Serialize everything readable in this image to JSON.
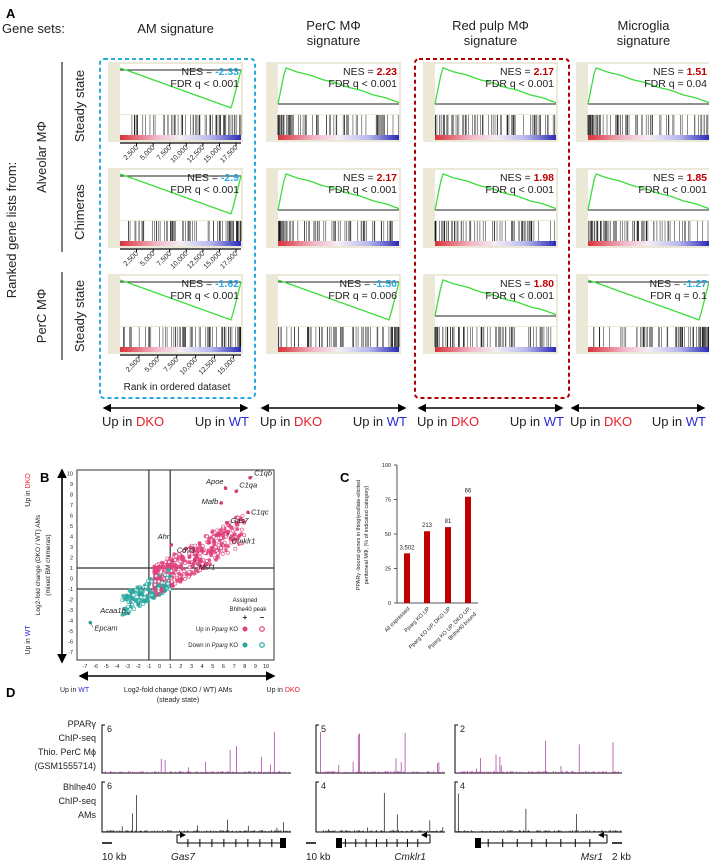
{
  "panel_labels": {
    "a": "A",
    "b": "B",
    "c": "C",
    "d": "D"
  },
  "panel_a": {
    "gene_sets_label": "Gene sets:",
    "columns": [
      {
        "title": [
          "AM signature",
          ""
        ]
      },
      {
        "title": [
          "PerC MΦ",
          "signature"
        ]
      },
      {
        "title": [
          "Red pulp MΦ",
          "signature"
        ]
      },
      {
        "title": [
          "Microglia",
          "signature"
        ]
      }
    ],
    "ranked_label": "Ranked gene lists from:",
    "groups": [
      {
        "label": "Alveolar MΦ"
      },
      {
        "label": "PerC MΦ"
      }
    ],
    "rows": [
      {
        "label": "Steady state"
      },
      {
        "label": "Chimeras"
      },
      {
        "label": "Steady state"
      }
    ],
    "results": [
      [
        {
          "nes": "-2.33",
          "fdr": "FDR q < 0.001"
        },
        {
          "nes": "2.23",
          "fdr": "FDR q < 0.001"
        },
        {
          "nes": "2.17",
          "fdr": "FDR q < 0.001"
        },
        {
          "nes": "1.51",
          "fdr": "FDR q = 0.04"
        }
      ],
      [
        {
          "nes": "-2.9",
          "fdr": "FDR q < 0.001"
        },
        {
          "nes": "2.17",
          "fdr": "FDR q < 0.001"
        },
        {
          "nes": "1.98",
          "fdr": "FDR q < 0.001"
        },
        {
          "nes": "1.85",
          "fdr": "FDR q < 0.001"
        }
      ],
      [
        {
          "nes": "-1.62",
          "fdr": "FDR q < 0.001"
        },
        {
          "nes": "-1.50",
          "fdr": "FDR q = 0.006"
        },
        {
          "nes": "1.80",
          "fdr": "FDR q < 0.001"
        },
        {
          "nes": "-1.27",
          "fdr": "FDR q = 0.1"
        }
      ]
    ],
    "nes_prefix": "NES = ",
    "rank_ticks_rows12": [
      "2,500",
      "5,000",
      "7,500",
      "10,000",
      "12,500",
      "15,000",
      "17,500"
    ],
    "rank_ticks_row3": [
      "2,500",
      "5,000",
      "7,500",
      "10,000",
      "12,500",
      "15,000"
    ],
    "rank_axis_label": "Rank in ordered dataset",
    "up_in": "Up in",
    "dko": "DKO",
    "wt": "WT",
    "colors": {
      "negative": "#29abe2",
      "positive": "#c00000",
      "curve": "#3ddc3d",
      "dko": "#e8202a",
      "wt": "#2a2ad8"
    }
  },
  "chart_data": [
    {
      "type": "scatter",
      "xlabel": "Log2-fold change (DKO / WT) AMs",
      "xlabel_sub": "(steady state)",
      "ylabel": "Log2-fold change (DKO / WT) AMs",
      "ylabel_sub": "(mixed BM chimeras)",
      "xlim": [
        -7,
        10
      ],
      "ylim": [
        -7,
        10
      ],
      "xticks": [
        "-7",
        "-6",
        "-5",
        "-4",
        "-3",
        "-2",
        "-1",
        "0",
        "1",
        "2",
        "3",
        "4",
        "5",
        "6",
        "7",
        "8",
        "9",
        "10"
      ],
      "yticks": [
        "-7",
        "-6",
        "-5",
        "-4",
        "-3",
        "-2",
        "-1",
        "0",
        "1",
        "2",
        "3",
        "4",
        "5",
        "6",
        "7",
        "8",
        "9",
        "10"
      ],
      "thresholds": [
        -1,
        1
      ],
      "labeled_genes": [
        {
          "gene": "C1qb",
          "x": 8.5,
          "y": 9.6
        },
        {
          "gene": "C1qa",
          "x": 7.2,
          "y": 8.3
        },
        {
          "gene": "Apoe",
          "x": 6.2,
          "y": 8.6
        },
        {
          "gene": "Mafb",
          "x": 5.8,
          "y": 7.2
        },
        {
          "gene": "C1qc",
          "x": 8.3,
          "y": 6.3
        },
        {
          "gene": "Gas7",
          "x": 6.3,
          "y": 5.3
        },
        {
          "gene": "Ahr",
          "x": 1.1,
          "y": 3.2
        },
        {
          "gene": "Cd93",
          "x": 3.5,
          "y": 2.2
        },
        {
          "gene": "Cmklr1",
          "x": 6.4,
          "y": 4.3
        },
        {
          "gene": "Msr1",
          "x": 3.3,
          "y": 1.8
        },
        {
          "gene": "Acaa1b",
          "x": -2.9,
          "y": -3.3
        },
        {
          "gene": "Epcam",
          "x": -6.5,
          "y": -4.2
        }
      ],
      "legend": {
        "title": [
          "Assigned",
          "Bhlhe40 peak"
        ],
        "plus": "+",
        "minus": "−",
        "up": [
          "Up in ",
          "Pparg",
          " KO"
        ],
        "down": [
          "Down in ",
          "Pparg",
          " KO"
        ]
      },
      "series_colors": {
        "up": "#e0407a",
        "down": "#2aa8a0"
      },
      "up_dko": "DKO",
      "up_wt": "WT"
    },
    {
      "type": "bar",
      "ylabel": [
        "PPARγ -bound genes in thioglycollate-elicited",
        "peritoneal MΦ, (% of indicated category)"
      ],
      "ylim": [
        0,
        100
      ],
      "yticks": [
        "0",
        "25",
        "50",
        "75",
        "100"
      ],
      "categories": [
        "All expressed",
        "Pparg KO UP",
        "Pparg KO UP, DKO UP",
        "Pparg KO UP, DKO UP,|Bhlhe40 bound"
      ],
      "values": [
        36,
        52,
        55,
        77
      ],
      "labels": [
        "3,502",
        "213",
        "81",
        "66"
      ],
      "color": "#c00000"
    }
  ],
  "panel_d": {
    "track_labels": [
      [
        "PPARγ",
        "ChIP-seq",
        "Thio. PerC Mϕ",
        "(GSM1555714)"
      ],
      [
        "Bhlhe40",
        "ChIP-seq",
        "AMs"
      ]
    ],
    "loci": [
      {
        "gene": "Gas7",
        "ppar_max": "6",
        "bhlhe_max": "6",
        "scale": "10 kb"
      },
      {
        "gene": "Cmklr1",
        "ppar_max": "5",
        "bhlhe_max": "4",
        "scale": "10 kb"
      },
      {
        "gene": "Msr1",
        "ppar_max": "2",
        "bhlhe_max": "4",
        "scale": "2 kb"
      }
    ],
    "colors": {
      "ppar": "#a0309a",
      "bhlhe": "#111111"
    }
  }
}
